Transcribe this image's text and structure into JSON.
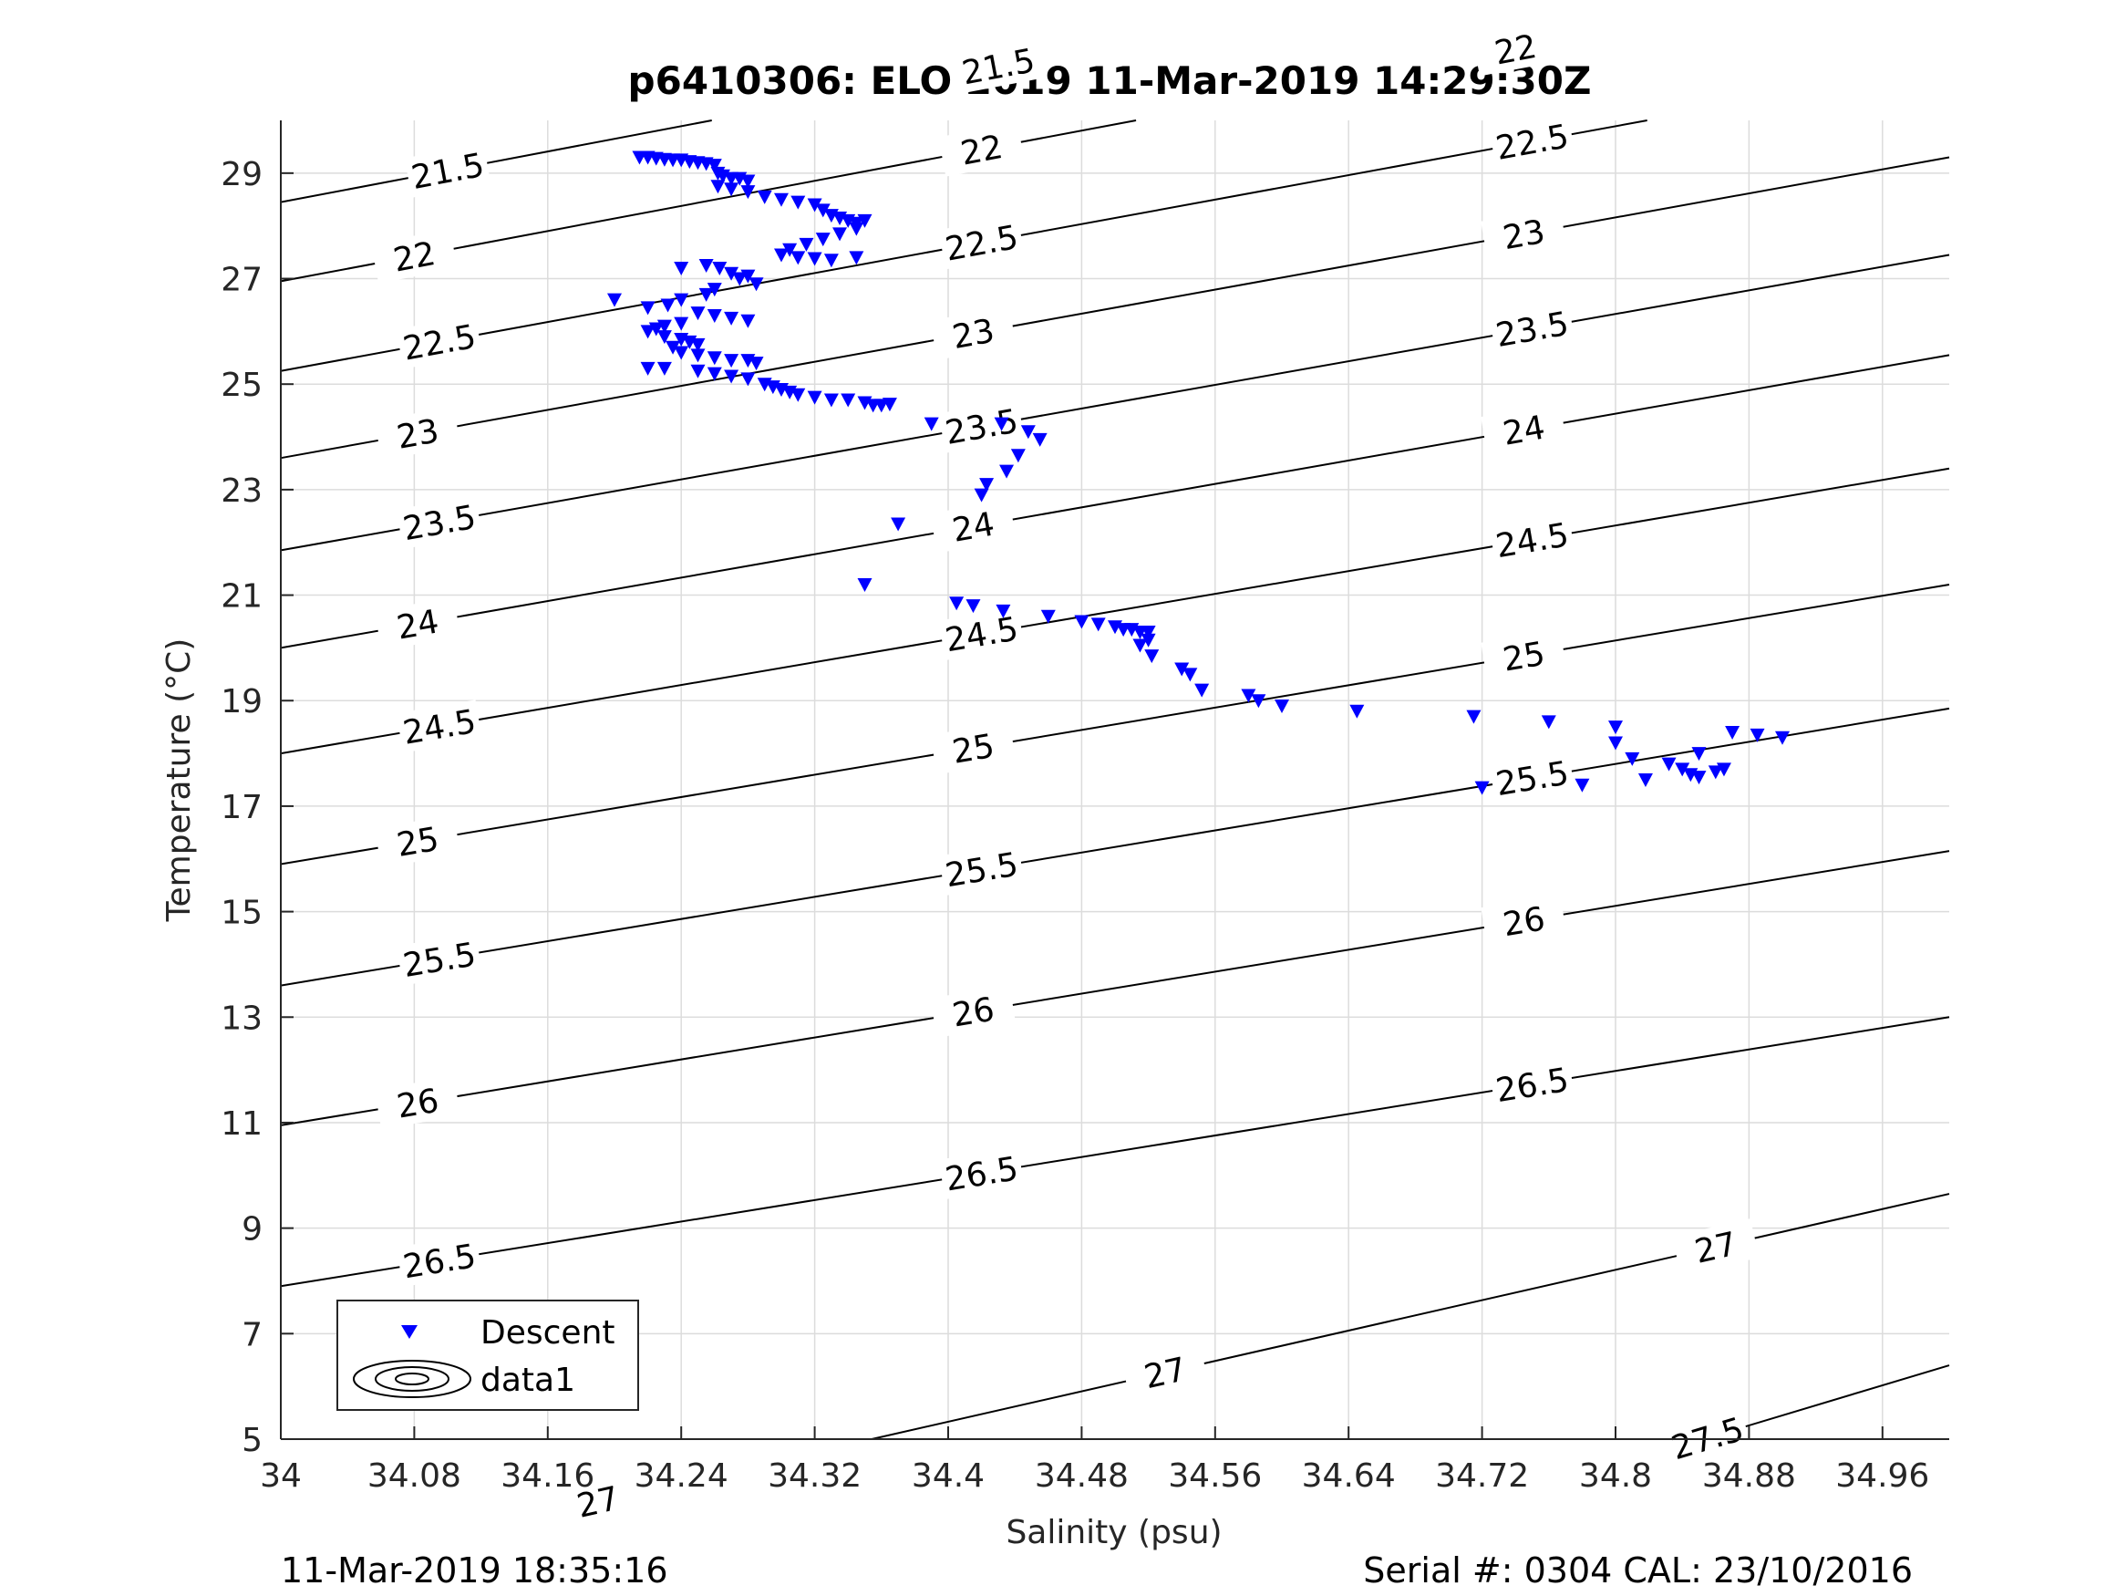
{
  "footer": {
    "left": "11-Mar-2019 18:35:16",
    "right": "Serial #: 0304  CAL: 23/10/2016"
  },
  "colors": {
    "marker": "#0000ff",
    "contour": "#000000",
    "grid": "#dcdcdc",
    "axis": "#262626"
  },
  "chart_data": {
    "type": "scatter",
    "title": "p6410306: ELO 2019 11-Mar-2019 14:29:30Z",
    "xlabel": "Salinity (psu)",
    "ylabel": "Temperature (°C)",
    "xlim": [
      34.0,
      35.0
    ],
    "ylim": [
      5,
      30
    ],
    "xticks": [
      "34",
      "34.08",
      "34.16",
      "34.24",
      "34.32",
      "34.4",
      "34.48",
      "34.56",
      "34.64",
      "34.72",
      "34.8",
      "34.88",
      "34.96"
    ],
    "xtick_values": [
      34.0,
      34.08,
      34.16,
      34.24,
      34.32,
      34.4,
      34.48,
      34.56,
      34.64,
      34.72,
      34.8,
      34.88,
      34.96
    ],
    "yticks": [
      "5",
      "7",
      "9",
      "11",
      "13",
      "15",
      "17",
      "19",
      "21",
      "23",
      "25",
      "27",
      "29"
    ],
    "ytick_values": [
      5,
      7,
      9,
      11,
      13,
      15,
      17,
      19,
      21,
      23,
      25,
      27,
      29
    ],
    "grid": true,
    "legend": {
      "placement": "bottom-left",
      "entries": [
        "Descent",
        "data1"
      ]
    },
    "series": [
      {
        "name": "Descent",
        "marker": "down-triangle",
        "points": [
          [
            34.215,
            29.3
          ],
          [
            34.22,
            29.3
          ],
          [
            34.225,
            29.28
          ],
          [
            34.23,
            29.26
          ],
          [
            34.235,
            29.25
          ],
          [
            34.24,
            29.25
          ],
          [
            34.245,
            29.22
          ],
          [
            34.25,
            29.2
          ],
          [
            34.255,
            29.18
          ],
          [
            34.26,
            29.15
          ],
          [
            34.262,
            29.0
          ],
          [
            34.265,
            28.95
          ],
          [
            34.27,
            28.9
          ],
          [
            34.275,
            28.9
          ],
          [
            34.28,
            28.85
          ],
          [
            34.262,
            28.75
          ],
          [
            34.27,
            28.7
          ],
          [
            34.28,
            28.65
          ],
          [
            34.29,
            28.55
          ],
          [
            34.3,
            28.5
          ],
          [
            34.31,
            28.45
          ],
          [
            34.32,
            28.4
          ],
          [
            34.325,
            28.3
          ],
          [
            34.33,
            28.2
          ],
          [
            34.335,
            28.15
          ],
          [
            34.34,
            28.1
          ],
          [
            34.345,
            28.05
          ],
          [
            34.35,
            28.1
          ],
          [
            34.345,
            27.95
          ],
          [
            34.335,
            27.85
          ],
          [
            34.325,
            27.75
          ],
          [
            34.315,
            27.65
          ],
          [
            34.305,
            27.55
          ],
          [
            34.3,
            27.45
          ],
          [
            34.31,
            27.4
          ],
          [
            34.32,
            27.38
          ],
          [
            34.33,
            27.35
          ],
          [
            34.345,
            27.4
          ],
          [
            34.24,
            27.2
          ],
          [
            34.255,
            27.25
          ],
          [
            34.263,
            27.2
          ],
          [
            34.27,
            27.1
          ],
          [
            34.275,
            27.0
          ],
          [
            34.28,
            27.05
          ],
          [
            34.285,
            26.9
          ],
          [
            34.26,
            26.8
          ],
          [
            34.255,
            26.7
          ],
          [
            34.24,
            26.6
          ],
          [
            34.232,
            26.5
          ],
          [
            34.2,
            26.6
          ],
          [
            34.22,
            26.45
          ],
          [
            34.25,
            26.35
          ],
          [
            34.26,
            26.3
          ],
          [
            34.27,
            26.25
          ],
          [
            34.28,
            26.2
          ],
          [
            34.24,
            26.15
          ],
          [
            34.23,
            26.1
          ],
          [
            34.225,
            26.05
          ],
          [
            34.22,
            26.0
          ],
          [
            34.23,
            25.9
          ],
          [
            34.24,
            25.85
          ],
          [
            34.245,
            25.8
          ],
          [
            34.25,
            25.75
          ],
          [
            34.235,
            25.7
          ],
          [
            34.24,
            25.6
          ],
          [
            34.25,
            25.55
          ],
          [
            34.26,
            25.5
          ],
          [
            34.27,
            25.45
          ],
          [
            34.28,
            25.45
          ],
          [
            34.285,
            25.4
          ],
          [
            34.22,
            25.3
          ],
          [
            34.23,
            25.3
          ],
          [
            34.25,
            25.25
          ],
          [
            34.26,
            25.2
          ],
          [
            34.27,
            25.15
          ],
          [
            34.28,
            25.1
          ],
          [
            34.29,
            25.0
          ],
          [
            34.295,
            24.95
          ],
          [
            34.3,
            24.9
          ],
          [
            34.305,
            24.85
          ],
          [
            34.31,
            24.8
          ],
          [
            34.32,
            24.75
          ],
          [
            34.33,
            24.7
          ],
          [
            34.34,
            24.7
          ],
          [
            34.35,
            24.65
          ],
          [
            34.355,
            24.6
          ],
          [
            34.36,
            24.6
          ],
          [
            34.365,
            24.62
          ],
          [
            34.39,
            24.25
          ],
          [
            34.432,
            24.25
          ],
          [
            34.448,
            24.1
          ],
          [
            34.455,
            23.95
          ],
          [
            34.442,
            23.65
          ],
          [
            34.435,
            23.35
          ],
          [
            34.423,
            23.1
          ],
          [
            34.42,
            22.9
          ],
          [
            34.37,
            22.35
          ],
          [
            34.35,
            21.2
          ],
          [
            34.405,
            20.85
          ],
          [
            34.415,
            20.8
          ],
          [
            34.433,
            20.7
          ],
          [
            34.46,
            20.6
          ],
          [
            34.48,
            20.5
          ],
          [
            34.49,
            20.45
          ],
          [
            34.5,
            20.4
          ],
          [
            34.505,
            20.35
          ],
          [
            34.51,
            20.35
          ],
          [
            34.515,
            20.3
          ],
          [
            34.52,
            20.3
          ],
          [
            34.52,
            20.15
          ],
          [
            34.515,
            20.05
          ],
          [
            34.522,
            19.85
          ],
          [
            34.54,
            19.6
          ],
          [
            34.545,
            19.5
          ],
          [
            34.552,
            19.2
          ],
          [
            34.58,
            19.1
          ],
          [
            34.586,
            19.0
          ],
          [
            34.6,
            18.9
          ],
          [
            34.645,
            18.8
          ],
          [
            34.715,
            18.7
          ],
          [
            34.72,
            17.35
          ],
          [
            34.76,
            18.6
          ],
          [
            34.78,
            17.4
          ],
          [
            34.8,
            18.5
          ],
          [
            34.8,
            18.2
          ],
          [
            34.81,
            17.9
          ],
          [
            34.818,
            17.5
          ],
          [
            34.832,
            17.8
          ],
          [
            34.84,
            17.7
          ],
          [
            34.845,
            17.6
          ],
          [
            34.85,
            17.55
          ],
          [
            34.85,
            18.0
          ],
          [
            34.86,
            17.65
          ],
          [
            34.865,
            17.7
          ],
          [
            34.87,
            18.4
          ],
          [
            34.885,
            18.35
          ],
          [
            34.9,
            18.3
          ]
        ]
      }
    ],
    "contours": [
      {
        "level": "21.5",
        "y0": 28.45,
        "slope": 6.0,
        "labels": [
          [
            34.1,
            "21.5"
          ],
          [
            34.43,
            "21.5"
          ]
        ]
      },
      {
        "level": "22",
        "y0": 26.95,
        "slope": 5.95,
        "labels": [
          [
            34.08,
            "22"
          ],
          [
            34.42,
            "22"
          ],
          [
            34.74,
            "22"
          ]
        ]
      },
      {
        "level": "22.5",
        "y0": 25.25,
        "slope": 5.8,
        "labels": [
          [
            34.095,
            "22.5"
          ],
          [
            34.42,
            "22.5"
          ],
          [
            34.75,
            "22.5"
          ]
        ]
      },
      {
        "level": "23",
        "y0": 23.6,
        "slope": 5.7,
        "labels": [
          [
            34.082,
            "23"
          ],
          [
            34.415,
            "23"
          ],
          [
            34.745,
            "23"
          ]
        ]
      },
      {
        "level": "23.5",
        "y0": 21.85,
        "slope": 5.6,
        "labels": [
          [
            34.095,
            "23.5"
          ],
          [
            34.42,
            "23.5"
          ],
          [
            34.75,
            "23.5"
          ]
        ]
      },
      {
        "level": "24",
        "y0": 20.0,
        "slope": 5.55,
        "labels": [
          [
            34.082,
            "24"
          ],
          [
            34.415,
            "24"
          ],
          [
            34.745,
            "24"
          ]
        ]
      },
      {
        "level": "24.5",
        "y0": 18.0,
        "slope": 5.4,
        "labels": [
          [
            34.095,
            "24.5"
          ],
          [
            34.42,
            "24.5"
          ],
          [
            34.75,
            "24.5"
          ]
        ]
      },
      {
        "level": "25",
        "y0": 15.9,
        "slope": 5.3,
        "labels": [
          [
            34.082,
            "25"
          ],
          [
            34.415,
            "25"
          ],
          [
            34.745,
            "25"
          ]
        ]
      },
      {
        "level": "25.5",
        "y0": 13.6,
        "slope": 5.25,
        "labels": [
          [
            34.095,
            "25.5"
          ],
          [
            34.42,
            "25.5"
          ],
          [
            34.75,
            "25.5"
          ]
        ]
      },
      {
        "level": "26",
        "y0": 10.95,
        "slope": 5.2,
        "labels": [
          [
            34.082,
            "26"
          ],
          [
            34.415,
            "26"
          ],
          [
            34.745,
            "26"
          ]
        ]
      },
      {
        "level": "26.5",
        "y0": 7.9,
        "slope": 5.1,
        "labels": [
          [
            34.095,
            "26.5"
          ],
          [
            34.42,
            "26.5"
          ],
          [
            34.75,
            "26.5"
          ]
        ]
      },
      {
        "level": "27",
        "y0": 2.45,
        "slope": 7.2,
        "labels": [
          [
            34.19,
            "27"
          ],
          [
            34.53,
            "27"
          ],
          [
            34.86,
            "27"
          ]
        ]
      },
      {
        "level": "27.5",
        "y0": -3.1,
        "slope": 9.5,
        "labels": [
          [
            34.855,
            "27.5"
          ]
        ]
      }
    ]
  }
}
